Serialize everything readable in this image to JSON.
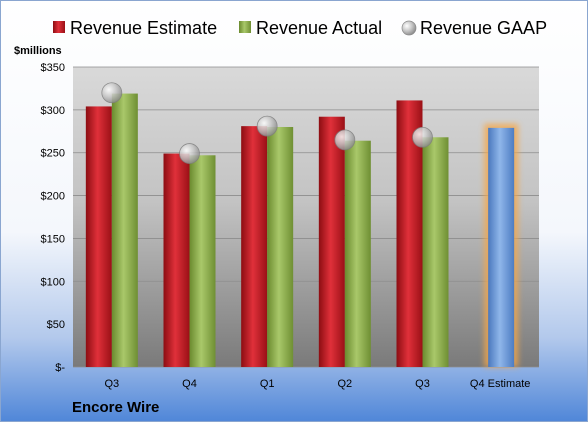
{
  "company": "Encore Wire",
  "colors": {
    "estimate": "#c0171d",
    "actual": "#8fb04a",
    "gaap": "#b8b8b8",
    "forecast": "#6e9bd6",
    "forecast_glow": "#f5a74a"
  },
  "chart_data": {
    "type": "bar",
    "ylabel": "$millions",
    "ylim": [
      0,
      350
    ],
    "yticks": [
      0,
      50,
      100,
      150,
      200,
      250,
      300,
      350
    ],
    "ytick_labels": [
      "$-",
      "$50",
      "$100",
      "$150",
      "$200",
      "$250",
      "$300",
      "$350"
    ],
    "categories": [
      "Q3",
      "Q4",
      "Q1",
      "Q2",
      "Q3",
      "Q4 Estimate"
    ],
    "legend": {
      "position": "top"
    },
    "grid": true,
    "series": [
      {
        "name": "Revenue Estimate",
        "type": "bar",
        "values": [
          304,
          249,
          281,
          292,
          311,
          null
        ]
      },
      {
        "name": "Revenue Actual",
        "type": "bar",
        "values": [
          319,
          247,
          280,
          264,
          268,
          279
        ]
      },
      {
        "name": "Revenue GAAP",
        "type": "scatter",
        "values": [
          320,
          249,
          281,
          265,
          268,
          null
        ]
      }
    ]
  }
}
